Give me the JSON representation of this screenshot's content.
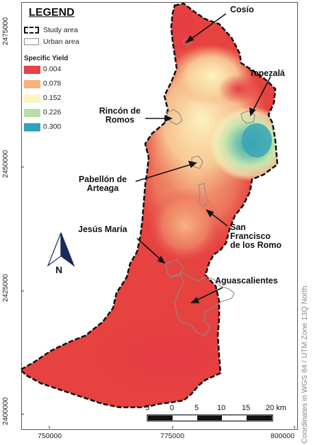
{
  "legend": {
    "title": "LEGEND",
    "study_area_label": "Study area",
    "urban_area_label": "Urban area",
    "specific_yield_title": "Specific Yield",
    "classes": [
      {
        "value": "0.004",
        "color": "#e8424a"
      },
      {
        "value": "0.078",
        "color": "#f7b07f"
      },
      {
        "value": "0.152",
        "color": "#fdf6c2"
      },
      {
        "value": "0.226",
        "color": "#b9dfa8"
      },
      {
        "value": "0.300",
        "color": "#31a3b8"
      }
    ]
  },
  "y_axis": {
    "ticks": [
      "2475000",
      "2450000",
      "2425000",
      "2400000"
    ]
  },
  "x_axis": {
    "ticks": [
      "750000",
      "775000",
      "800000"
    ]
  },
  "places": {
    "cosio": "Cosío",
    "tepezala": "Tepezalá",
    "rincon_1": "Rincón de",
    "rincon_2": "Romos",
    "pabellon_1": "Pabellón de",
    "pabellon_2": "Arteaga",
    "sanfran_1": "San",
    "sanfran_2": "Francisco",
    "sanfran_3": "de los Romo",
    "jesus_maria": "Jesús María",
    "aguascalientes": "Aguascalientes"
  },
  "north_arrow": {
    "label": "N"
  },
  "scale_bar": {
    "labels": [
      "5",
      "0",
      "5",
      "10",
      "15",
      "20 km"
    ]
  },
  "credit": "Coordinates in WGS 84 / UTM Zone 13Q North.",
  "colors": {
    "outline": "#111111",
    "urban": "#8a8a8a",
    "arrow": "#111111"
  }
}
